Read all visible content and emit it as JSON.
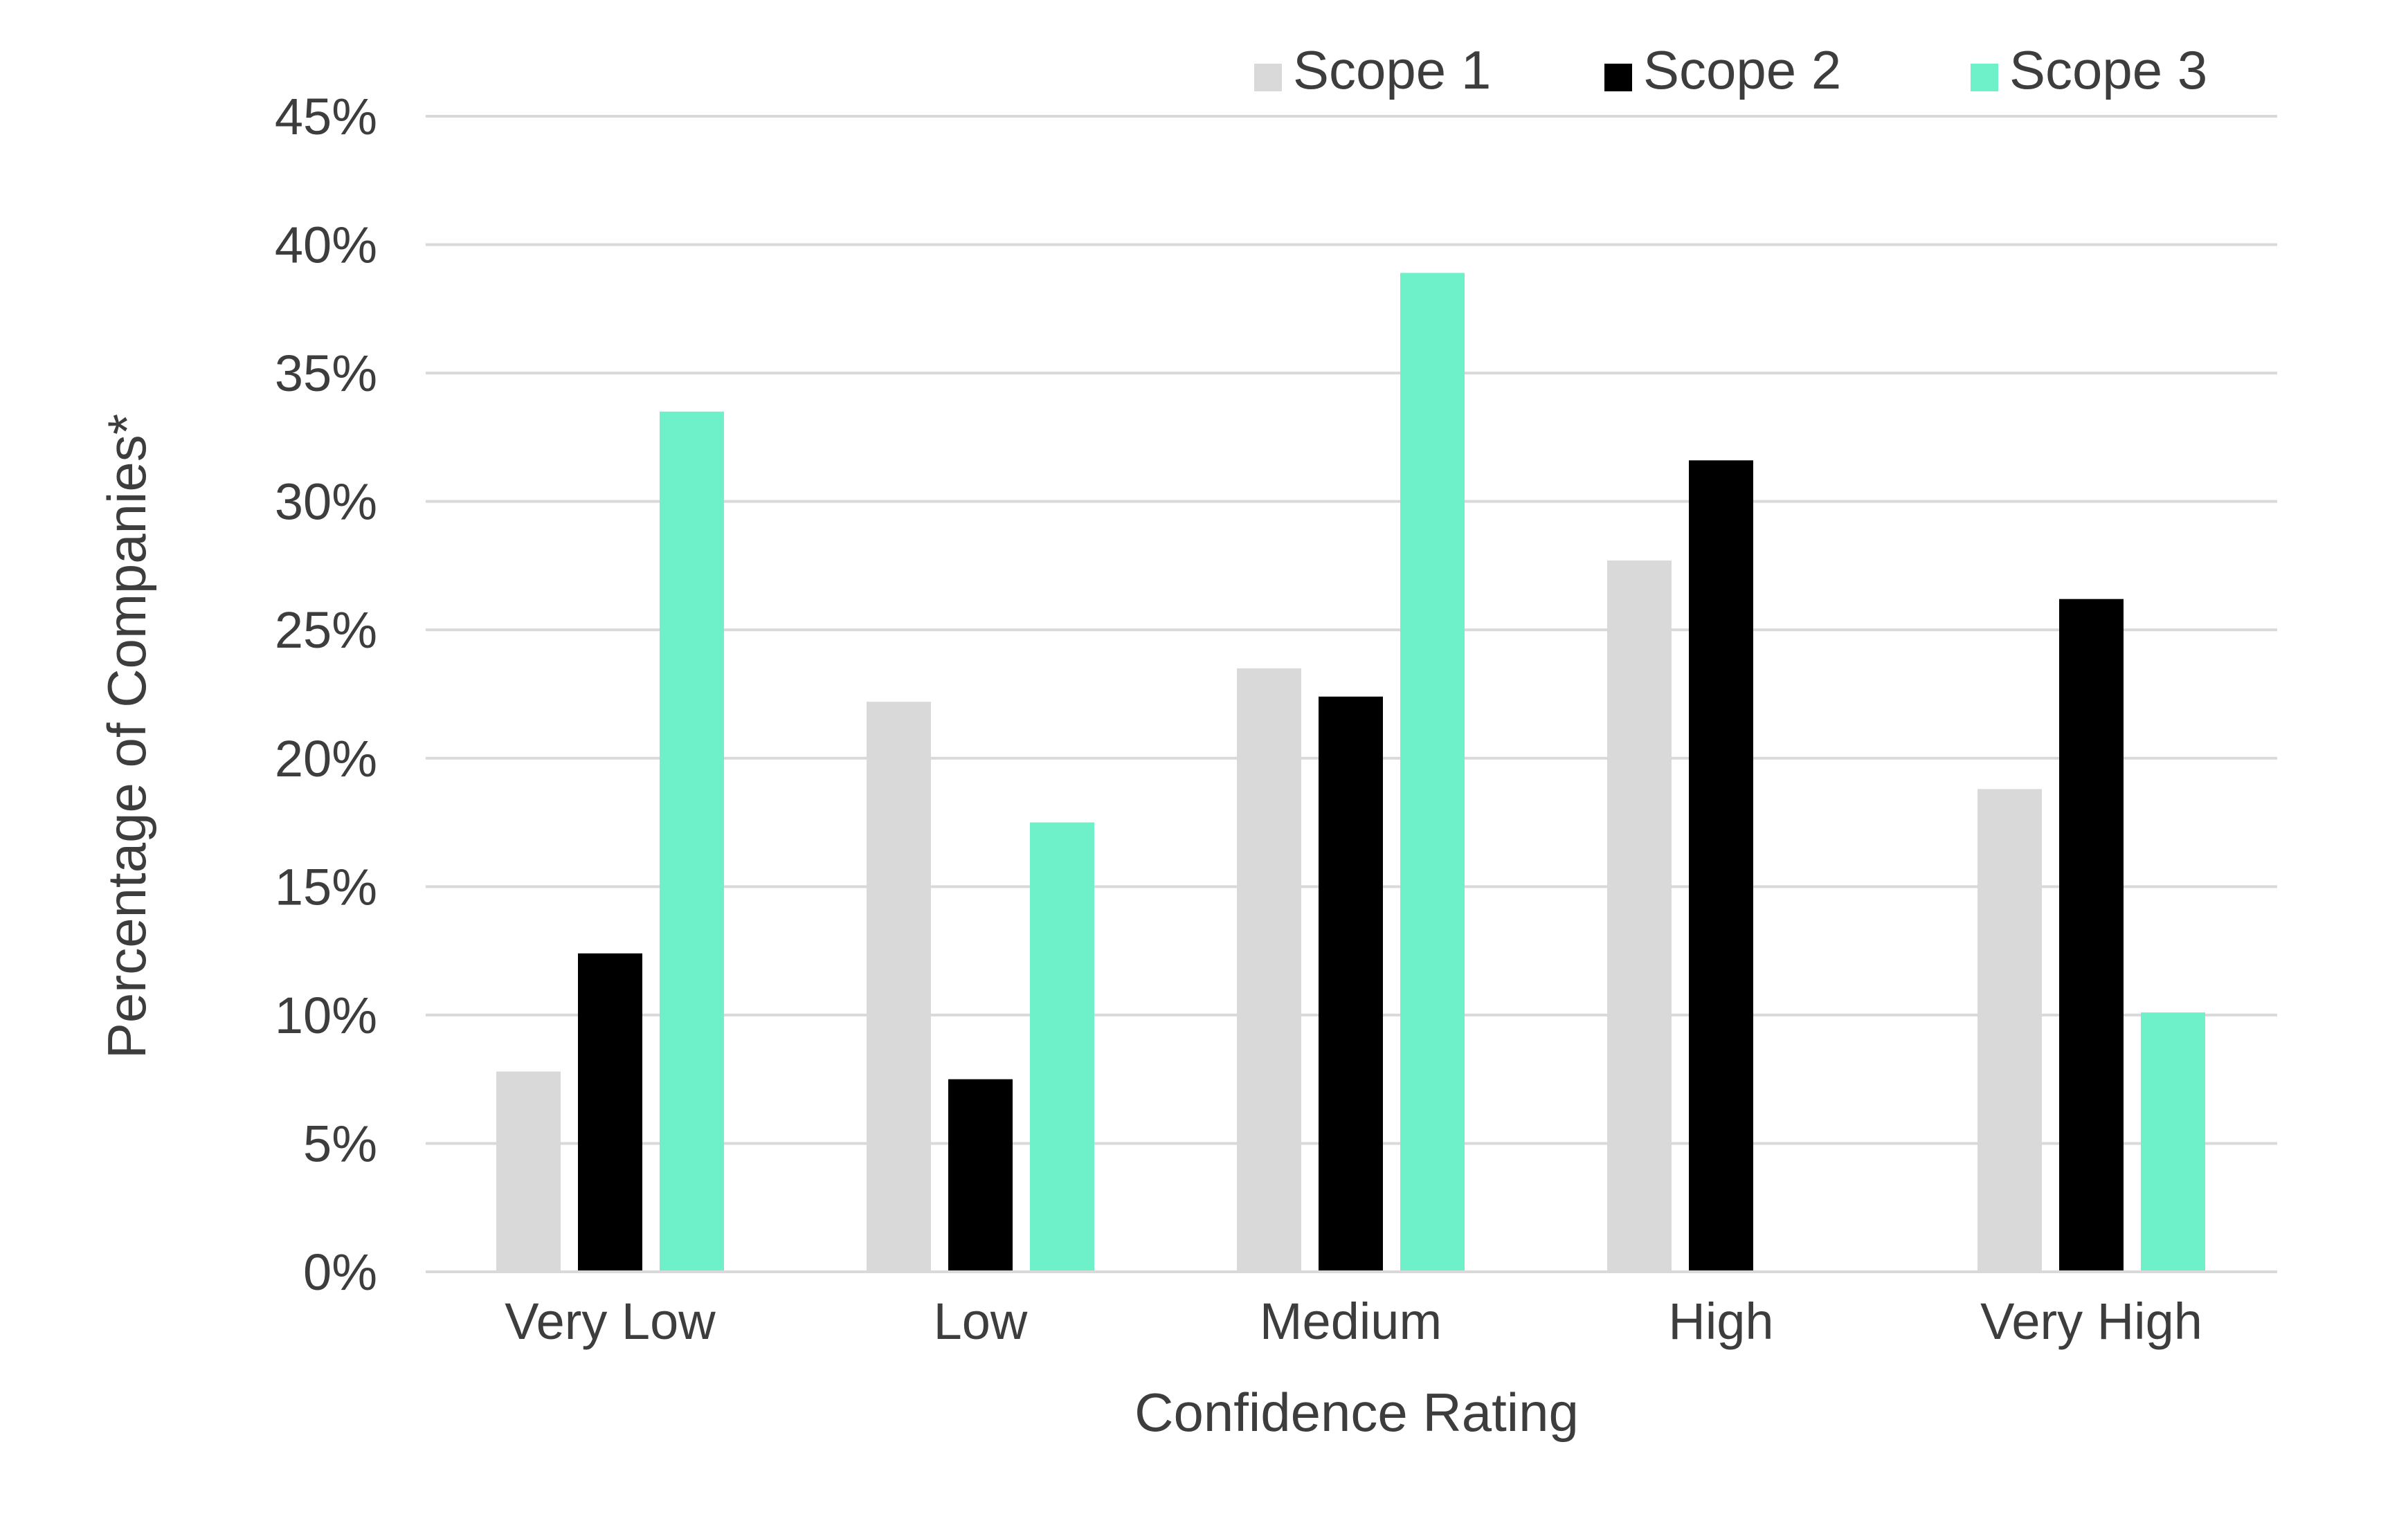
{
  "chart_data": {
    "type": "bar",
    "title": "",
    "xlabel": "Confidence Rating",
    "ylabel": "Percentage of Companies*",
    "categories": [
      "Very Low",
      "Low",
      "Medium",
      "High",
      "Very High"
    ],
    "series": [
      {
        "name": "Scope 1",
        "color": "#d9d9d9",
        "values": [
          7.8,
          22.2,
          23.5,
          27.7,
          18.8
        ]
      },
      {
        "name": "Scope 2",
        "color": "#000000",
        "values": [
          12.4,
          7.5,
          22.4,
          31.6,
          26.2
        ]
      },
      {
        "name": "Scope 3",
        "color": "#6ef0c8",
        "values": [
          33.5,
          17.5,
          38.9,
          0,
          10.1
        ]
      }
    ],
    "ylim": [
      0,
      45
    ],
    "yticks": [
      0,
      5,
      10,
      15,
      20,
      25,
      30,
      35,
      40,
      45
    ],
    "ytick_labels": [
      "0%",
      "5%",
      "10%",
      "15%",
      "20%",
      "25%",
      "30%",
      "35%",
      "40%",
      "45%"
    ],
    "grid": true,
    "legend_position": "top"
  },
  "colors": {
    "grid": "#d9d9d9",
    "text": "#3d3d3d"
  }
}
